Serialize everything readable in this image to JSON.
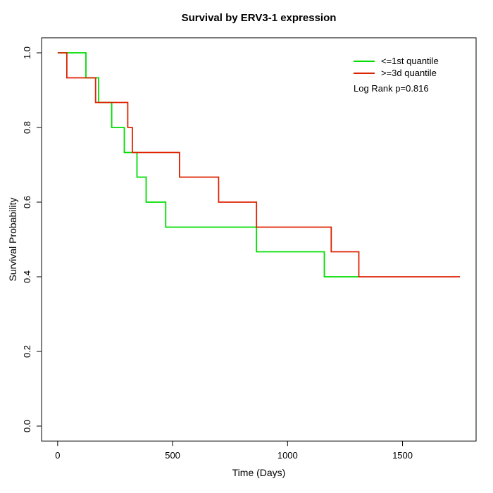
{
  "chart_data": {
    "type": "line",
    "subtype": "kaplan-meier-step",
    "title": "Survival by ERV3-1 expression",
    "xlabel": "Time (Days)",
    "ylabel": "Survival Probability",
    "xlim": [
      -70,
      1820
    ],
    "ylim": [
      -0.04,
      1.04
    ],
    "xticks": [
      0,
      500,
      1000,
      1500
    ],
    "yticks": [
      0.0,
      0.2,
      0.4,
      0.6,
      0.8,
      1.0
    ],
    "grid": false,
    "legend_position": "top-right-inside",
    "annotation": "Log Rank p=0.816",
    "log_rank_p": 0.816,
    "series": [
      {
        "name": "<=1st quantile",
        "color": "#00dd00",
        "steps": [
          [
            0,
            1.0
          ],
          [
            123,
            0.933
          ],
          [
            178,
            0.867
          ],
          [
            235,
            0.8
          ],
          [
            290,
            0.733
          ],
          [
            345,
            0.667
          ],
          [
            385,
            0.6
          ],
          [
            470,
            0.533
          ],
          [
            865,
            0.467
          ],
          [
            1160,
            0.4
          ]
        ],
        "end": 1310
      },
      {
        "name": ">=3d quantile",
        "color": "#dd2200",
        "steps": [
          [
            0,
            1.0
          ],
          [
            40,
            0.933
          ],
          [
            165,
            0.867
          ],
          [
            305,
            0.8
          ],
          [
            325,
            0.733
          ],
          [
            530,
            0.667
          ],
          [
            700,
            0.6
          ],
          [
            865,
            0.533
          ],
          [
            1190,
            0.467
          ],
          [
            1310,
            0.4
          ]
        ],
        "end": 1750
      }
    ]
  }
}
